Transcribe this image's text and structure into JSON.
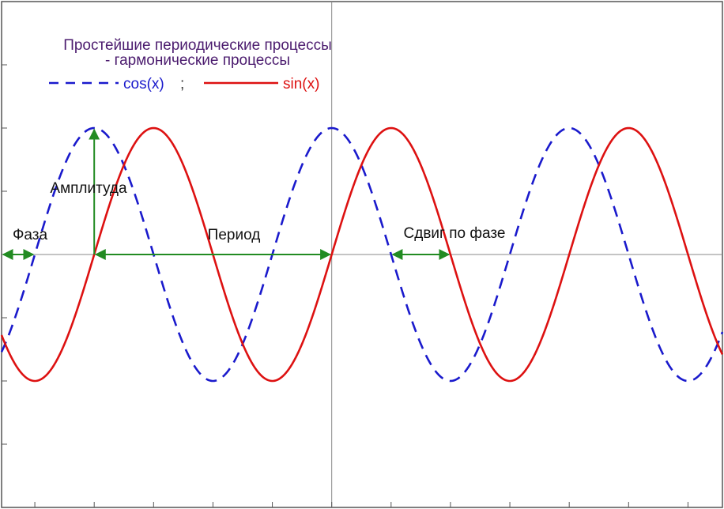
{
  "chart_data": {
    "type": "line",
    "title_lines": [
      "Простейшие периодические процессы",
      "- гармонические процессы"
    ],
    "xlabel": "",
    "ylabel": "",
    "xlim": [
      -0.78,
      5.29
    ],
    "ylim": [
      -2.0,
      2.0
    ],
    "x_unit": "pi",
    "grid": false,
    "axes": {
      "center_lines": true,
      "frame": true,
      "ticks": true
    },
    "series": [
      {
        "name": "cos(x)",
        "function": "cos",
        "color": "#1a1acc",
        "style": "dashed",
        "period_pi": 2
      },
      {
        "name": "sin(x)",
        "function": "sin",
        "color": "#dd1111",
        "style": "solid",
        "period_pi": 2
      }
    ],
    "legend": {
      "placement": "top-left",
      "items": [
        {
          "label": "cos(x)",
          "suffix": ";",
          "color": "#1a1acc",
          "style": "dashed"
        },
        {
          "label": "sin(x)",
          "suffix": "",
          "color": "#dd1111",
          "style": "solid"
        }
      ]
    },
    "annotations": [
      {
        "text": "Амплитуда",
        "arrow": "vertical",
        "from_y": 0,
        "to_y": 1,
        "at_x_pi": 0,
        "color": "#228b22"
      },
      {
        "text": "Фаза",
        "arrow": "double-horizontal",
        "from_x_pi": -0.78,
        "to_x_pi": -0.5,
        "at_y": 0,
        "color": "#228b22"
      },
      {
        "text": "Период",
        "arrow": "double-horizontal",
        "from_x_pi": 0,
        "to_x_pi": 2,
        "at_y": 0,
        "color": "#228b22"
      },
      {
        "text": "Сдвиг по фазе",
        "arrow": "double-horizontal",
        "from_x_pi": 2.5,
        "to_x_pi": 3.0,
        "at_y": 0,
        "color": "#228b22"
      }
    ]
  }
}
